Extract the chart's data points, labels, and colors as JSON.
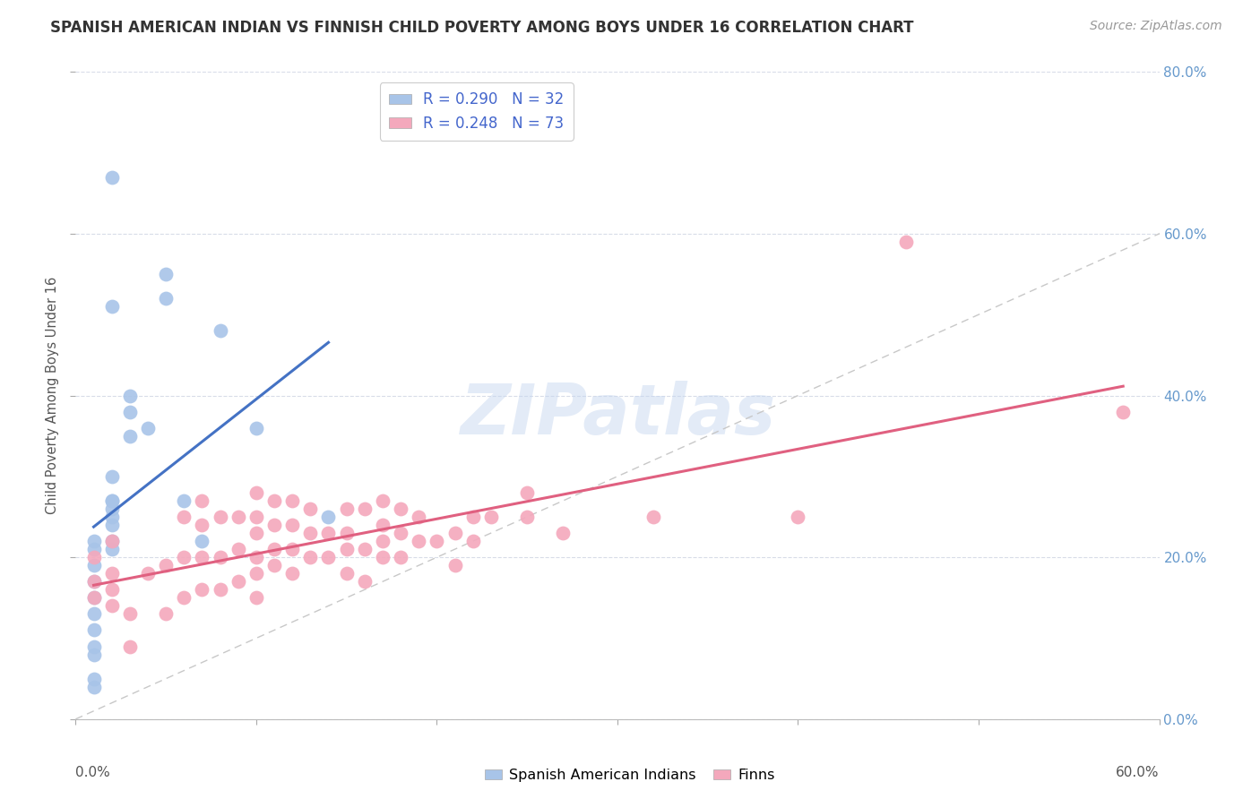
{
  "title": "SPANISH AMERICAN INDIAN VS FINNISH CHILD POVERTY AMONG BOYS UNDER 16 CORRELATION CHART",
  "source": "Source: ZipAtlas.com",
  "ylabel": "Child Poverty Among Boys Under 16",
  "xlim": [
    0.0,
    0.6
  ],
  "ylim": [
    0.0,
    0.8
  ],
  "blue_R": 0.29,
  "blue_N": 32,
  "pink_R": 0.248,
  "pink_N": 73,
  "blue_scatter_color": "#a8c4e8",
  "pink_scatter_color": "#f4a8bc",
  "blue_line_color": "#4472c4",
  "pink_line_color": "#e06080",
  "diagonal_color": "#c8c8c8",
  "legend_label_blue": "Spanish American Indians",
  "legend_label_pink": "Finns",
  "right_tick_color": "#6699cc",
  "grid_color": "#d8dce8",
  "blue_points_x": [
    0.01,
    0.01,
    0.01,
    0.01,
    0.01,
    0.01,
    0.01,
    0.01,
    0.01,
    0.01,
    0.01,
    0.02,
    0.02,
    0.02,
    0.02,
    0.02,
    0.02,
    0.02,
    0.02,
    0.02,
    0.02,
    0.03,
    0.03,
    0.03,
    0.04,
    0.05,
    0.05,
    0.06,
    0.07,
    0.08,
    0.1,
    0.14
  ],
  "blue_points_y": [
    0.04,
    0.05,
    0.08,
    0.09,
    0.11,
    0.13,
    0.15,
    0.17,
    0.19,
    0.21,
    0.22,
    0.21,
    0.22,
    0.24,
    0.26,
    0.27,
    0.25,
    0.27,
    0.3,
    0.67,
    0.51,
    0.35,
    0.38,
    0.4,
    0.36,
    0.52,
    0.55,
    0.27,
    0.22,
    0.48,
    0.36,
    0.25
  ],
  "pink_points_x": [
    0.01,
    0.01,
    0.01,
    0.02,
    0.02,
    0.02,
    0.02,
    0.03,
    0.03,
    0.04,
    0.05,
    0.05,
    0.06,
    0.06,
    0.06,
    0.07,
    0.07,
    0.07,
    0.07,
    0.08,
    0.08,
    0.08,
    0.09,
    0.09,
    0.09,
    0.1,
    0.1,
    0.1,
    0.1,
    0.1,
    0.1,
    0.11,
    0.11,
    0.11,
    0.11,
    0.12,
    0.12,
    0.12,
    0.12,
    0.13,
    0.13,
    0.13,
    0.14,
    0.14,
    0.15,
    0.15,
    0.15,
    0.15,
    0.16,
    0.16,
    0.16,
    0.17,
    0.17,
    0.17,
    0.17,
    0.18,
    0.18,
    0.18,
    0.19,
    0.19,
    0.2,
    0.21,
    0.21,
    0.22,
    0.22,
    0.23,
    0.25,
    0.25,
    0.27,
    0.32,
    0.4,
    0.46,
    0.58
  ],
  "pink_points_y": [
    0.15,
    0.17,
    0.2,
    0.14,
    0.16,
    0.18,
    0.22,
    0.09,
    0.13,
    0.18,
    0.13,
    0.19,
    0.15,
    0.2,
    0.25,
    0.16,
    0.2,
    0.24,
    0.27,
    0.16,
    0.2,
    0.25,
    0.17,
    0.21,
    0.25,
    0.15,
    0.18,
    0.2,
    0.23,
    0.25,
    0.28,
    0.19,
    0.21,
    0.24,
    0.27,
    0.18,
    0.21,
    0.24,
    0.27,
    0.2,
    0.23,
    0.26,
    0.2,
    0.23,
    0.18,
    0.21,
    0.23,
    0.26,
    0.17,
    0.21,
    0.26,
    0.2,
    0.22,
    0.24,
    0.27,
    0.2,
    0.23,
    0.26,
    0.22,
    0.25,
    0.22,
    0.19,
    0.23,
    0.22,
    0.25,
    0.25,
    0.25,
    0.28,
    0.23,
    0.25,
    0.25,
    0.59,
    0.38
  ]
}
